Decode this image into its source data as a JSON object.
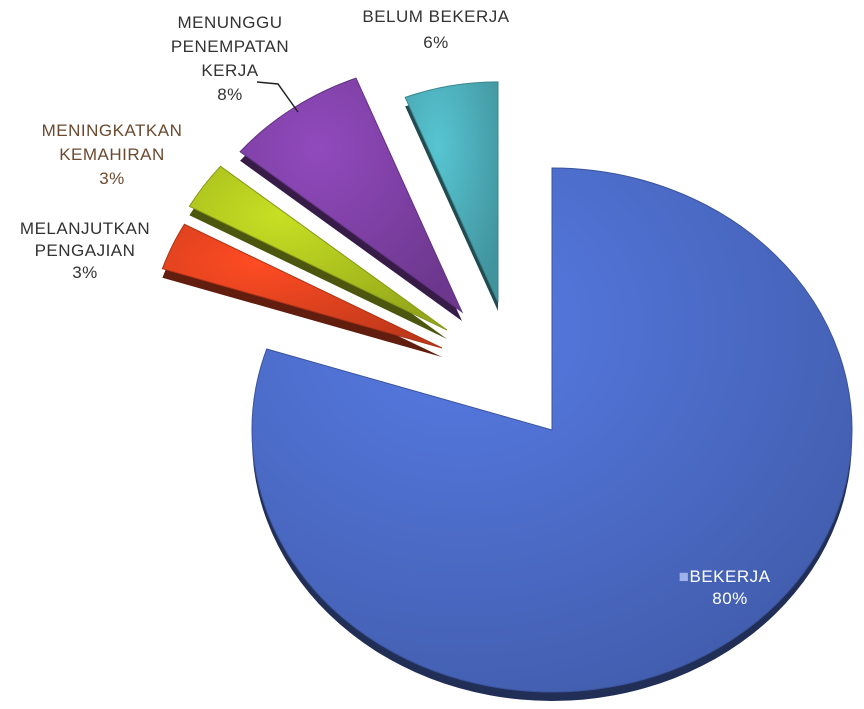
{
  "chart_data": {
    "type": "pie",
    "title": "",
    "style": "exploded-3d",
    "categories": [
      "BEKERJA",
      "MELANJUTKAN PENGAJIAN",
      "MENINGKATKAN KEMAHIRAN",
      "MENUNGGU PENEMPATAN KERJA",
      "BELUM BEKERJA"
    ],
    "values": [
      80,
      3,
      3,
      8,
      6
    ],
    "units": "%",
    "colors": [
      "#4a68c2",
      "#d8401e",
      "#a9be1e",
      "#7b3fa0",
      "#4aa7b2"
    ],
    "data_labels": [
      {
        "lines": [
          "BEKERJA",
          "80%"
        ],
        "color": "#ffffff",
        "marker": "■"
      },
      {
        "lines": [
          "MELANJUTKAN",
          "PENGAJIAN",
          "3%"
        ],
        "color": "#333333"
      },
      {
        "lines": [
          "MENINGKATKAN",
          "KEMAHIRAN",
          "3%"
        ],
        "color": "#6b4a2f"
      },
      {
        "lines": [
          "MENUNGGU",
          "PENEMPATAN",
          "KERJA",
          "8%"
        ],
        "color": "#333333"
      },
      {
        "lines": [
          "BELUM BEKERJA",
          "6%"
        ],
        "color": "#333333"
      }
    ]
  }
}
